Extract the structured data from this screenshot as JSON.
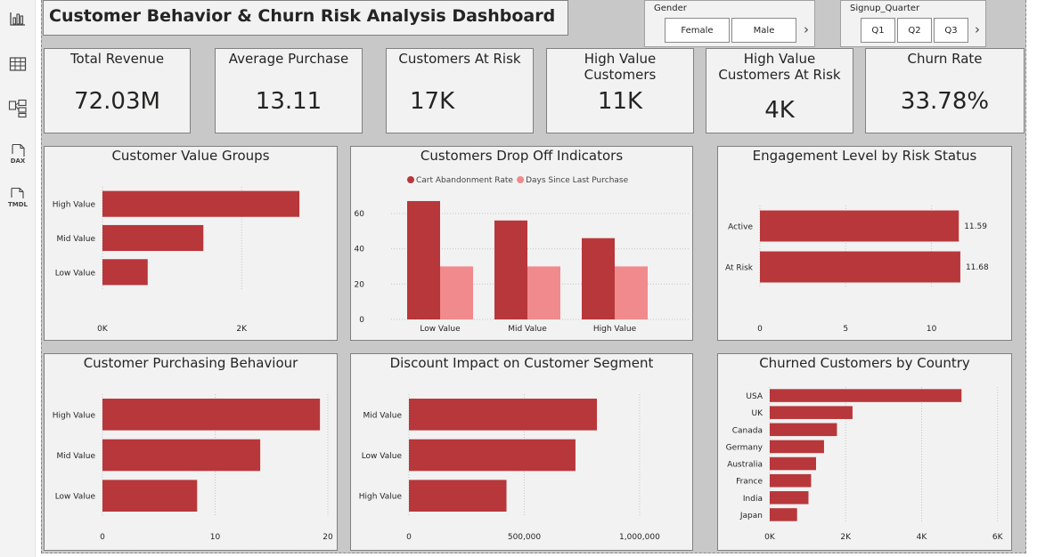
{
  "dashboard_title": "Customer Behavior & Churn Risk Analysis Dashboard",
  "left_rail": [
    {
      "name": "report-view-icon"
    },
    {
      "name": "table-view-icon"
    },
    {
      "name": "model-view-icon"
    },
    {
      "name": "dax-query-icon",
      "label": "DAX"
    },
    {
      "name": "tmdl-view-icon",
      "label": "TMDL"
    }
  ],
  "slicers": {
    "gender": {
      "title": "Gender",
      "options": [
        "Female",
        "Male"
      ]
    },
    "signup_quarter": {
      "title": "Signup_Quarter",
      "options": [
        "Q1",
        "Q2",
        "Q3"
      ]
    }
  },
  "kpis": [
    {
      "label": "Total Revenue",
      "value": "72.03M"
    },
    {
      "label": "Average Purchase",
      "value": "13.11"
    },
    {
      "label": "Customers At Risk",
      "value": "17K"
    },
    {
      "label": "High Value Customers",
      "value": "11K"
    },
    {
      "label": "High Value Customers At Risk",
      "value": "4K"
    },
    {
      "label": "Churn Rate",
      "value": "33.78%"
    }
  ],
  "colors": {
    "primary": "#b8373b",
    "secondary": "#f08a8d",
    "background": "#c8c8c8",
    "card": "#f2f2f2"
  },
  "chart_data": [
    {
      "id": "value-groups",
      "type": "bar",
      "orientation": "horizontal",
      "title": "Customer Value Groups",
      "categories": [
        "High Value",
        "Mid Value",
        "Low Value"
      ],
      "values": [
        2830,
        1450,
        650
      ],
      "xlim": [
        0,
        3200
      ],
      "ticks": [
        0,
        2000
      ],
      "tick_labels": [
        "0K",
        "2K"
      ],
      "grid": true
    },
    {
      "id": "drop-off",
      "type": "bar",
      "orientation": "vertical",
      "title": "Customers Drop Off Indicators",
      "categories": [
        "Low Value",
        "Mid Value",
        "High Value"
      ],
      "series": [
        {
          "name": "Cart Abandonment Rate",
          "values": [
            67,
            56,
            46
          ],
          "color": "#b8373b"
        },
        {
          "name": "Days Since Last  Purchase",
          "values": [
            30,
            30,
            30
          ],
          "color": "#f08a8d"
        }
      ],
      "ylim": [
        0,
        70
      ],
      "ticks": [
        0,
        20,
        40,
        60
      ],
      "legend": "top",
      "grid": true
    },
    {
      "id": "engagement",
      "type": "bar",
      "orientation": "horizontal",
      "title": "Engagement Level by Risk Status",
      "categories": [
        "Active",
        "At Risk"
      ],
      "values": [
        11.59,
        11.68
      ],
      "data_labels": [
        "11.59",
        "11.68"
      ],
      "xlim": [
        0,
        13.5
      ],
      "ticks": [
        0,
        5,
        10
      ],
      "grid": true
    },
    {
      "id": "purchasing",
      "type": "bar",
      "orientation": "horizontal",
      "title": "Customer Purchasing Behaviour",
      "categories": [
        "High Value",
        "Mid Value",
        "Low Value"
      ],
      "values": [
        19.3,
        14.0,
        8.4
      ],
      "xlim": [
        0,
        20
      ],
      "ticks": [
        0,
        10,
        20
      ],
      "grid": true
    },
    {
      "id": "discount",
      "type": "bar",
      "orientation": "horizontal",
      "title": "Discount Impact on Customer Segment",
      "categories": [
        "Mid Value",
        "Low Value",
        "High Value"
      ],
      "values": [
        815000,
        722000,
        423000
      ],
      "xlim": [
        0,
        1120000
      ],
      "ticks": [
        0,
        500000,
        1000000
      ],
      "tick_labels": [
        "0",
        "500,000",
        "1,000,000"
      ],
      "grid": true
    },
    {
      "id": "country",
      "type": "bar",
      "orientation": "horizontal",
      "title": "Churned Customers by Country",
      "categories": [
        "USA",
        "UK",
        "Canada",
        "Germany",
        "Australia",
        "France",
        "India",
        "Japan"
      ],
      "values": [
        5050,
        2180,
        1770,
        1430,
        1220,
        1090,
        1020,
        720
      ],
      "xlim": [
        0,
        6100
      ],
      "ticks": [
        0,
        2000,
        4000,
        6000
      ],
      "tick_labels": [
        "0K",
        "2K",
        "4K",
        "6K"
      ],
      "grid": true
    }
  ]
}
